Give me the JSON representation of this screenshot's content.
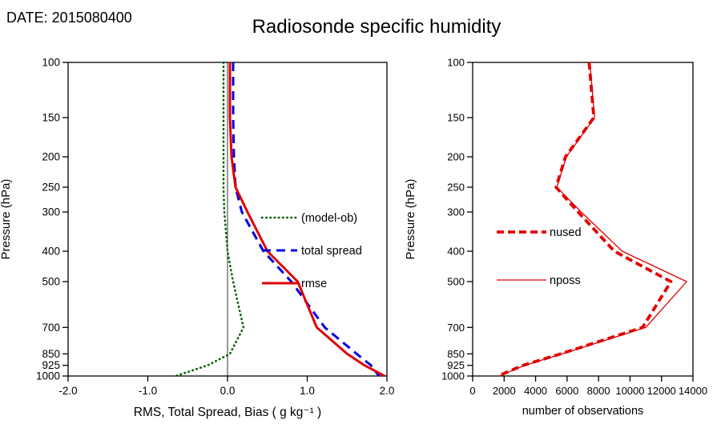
{
  "header": {
    "date": "DATE: 2015080400",
    "title": "Radiosonde specific humidity"
  },
  "chart_data": [
    {
      "type": "line",
      "panel": "left",
      "xlabel": "RMS, Total Spread, Bias ( g kg⁻¹ )",
      "ylabel": "Pressure (hPa)",
      "xlim": [
        -2.0,
        2.0
      ],
      "xticks": [
        -2,
        -1,
        0,
        1,
        2
      ],
      "xtick_labels": [
        "-2.0",
        "-1.0",
        "0.0",
        "1.0",
        "2.0"
      ],
      "yscale": "log-reversed",
      "ylim": [
        100,
        1000
      ],
      "yticks": [
        100,
        150,
        200,
        250,
        300,
        400,
        500,
        700,
        850,
        925,
        1000
      ],
      "ytick_labels": [
        "100",
        "150",
        "200",
        "250",
        "300",
        "400",
        "500",
        "700",
        "850",
        "925",
        "1000"
      ],
      "zero_line": true,
      "grid": false,
      "pressure_levels": [
        100,
        150,
        200,
        250,
        300,
        400,
        500,
        700,
        850,
        925,
        1000
      ],
      "series": [
        {
          "name": "(model-ob)",
          "color": "#006400",
          "style": "dotted",
          "width": 2.6,
          "values": [
            -0.05,
            -0.05,
            -0.05,
            -0.05,
            -0.04,
            0.0,
            0.07,
            0.2,
            0.03,
            -0.25,
            -0.65
          ]
        },
        {
          "name": "total spread",
          "color": "#0000e0",
          "style": "dashed",
          "width": 3,
          "values": [
            0.07,
            0.07,
            0.08,
            0.1,
            0.18,
            0.45,
            0.8,
            1.22,
            1.62,
            1.8,
            1.9
          ]
        },
        {
          "name": "rmse",
          "color": "#e00000",
          "style": "solid",
          "width": 3,
          "values": [
            0.03,
            0.03,
            0.05,
            0.1,
            0.25,
            0.5,
            0.88,
            1.12,
            1.5,
            1.72,
            1.97
          ]
        }
      ],
      "legend": {
        "position": "inside-right",
        "items": [
          "(model-ob)",
          "total spread",
          "rmse"
        ]
      }
    },
    {
      "type": "line",
      "panel": "right",
      "xlabel": "number of observations",
      "ylabel": "Pressure (hPa)",
      "xlim": [
        0,
        14000
      ],
      "xticks": [
        0,
        2000,
        4000,
        6000,
        8000,
        10000,
        12000,
        14000
      ],
      "xtick_labels": [
        "0",
        "2000",
        "4000",
        "6000",
        "8000",
        "10000",
        "12000",
        "14000"
      ],
      "yscale": "log-reversed",
      "ylim": [
        100,
        1000
      ],
      "yticks": [
        100,
        150,
        200,
        250,
        300,
        400,
        500,
        700,
        850,
        925,
        1000
      ],
      "ytick_labels": [
        "100",
        "150",
        "200",
        "250",
        "300",
        "400",
        "500",
        "700",
        "850",
        "925",
        "1000"
      ],
      "zero_line": false,
      "grid": false,
      "pressure_levels": [
        100,
        150,
        200,
        250,
        300,
        400,
        500,
        700,
        850,
        925,
        1000
      ],
      "series": [
        {
          "name": "nused",
          "color": "#e00000",
          "style": "dashed",
          "width": 3.8,
          "values": [
            7400,
            7700,
            5900,
            5300,
            6700,
            9000,
            12600,
            10800,
            5600,
            3200,
            1600
          ]
        },
        {
          "name": "nposs",
          "color": "#e00000",
          "style": "solid",
          "width": 1.3,
          "values": [
            7450,
            7750,
            5950,
            5350,
            6900,
            9500,
            13600,
            11000,
            5700,
            3300,
            1700
          ]
        }
      ],
      "legend": {
        "position": "inside-left",
        "items": [
          "nused",
          "nposs"
        ]
      }
    }
  ]
}
